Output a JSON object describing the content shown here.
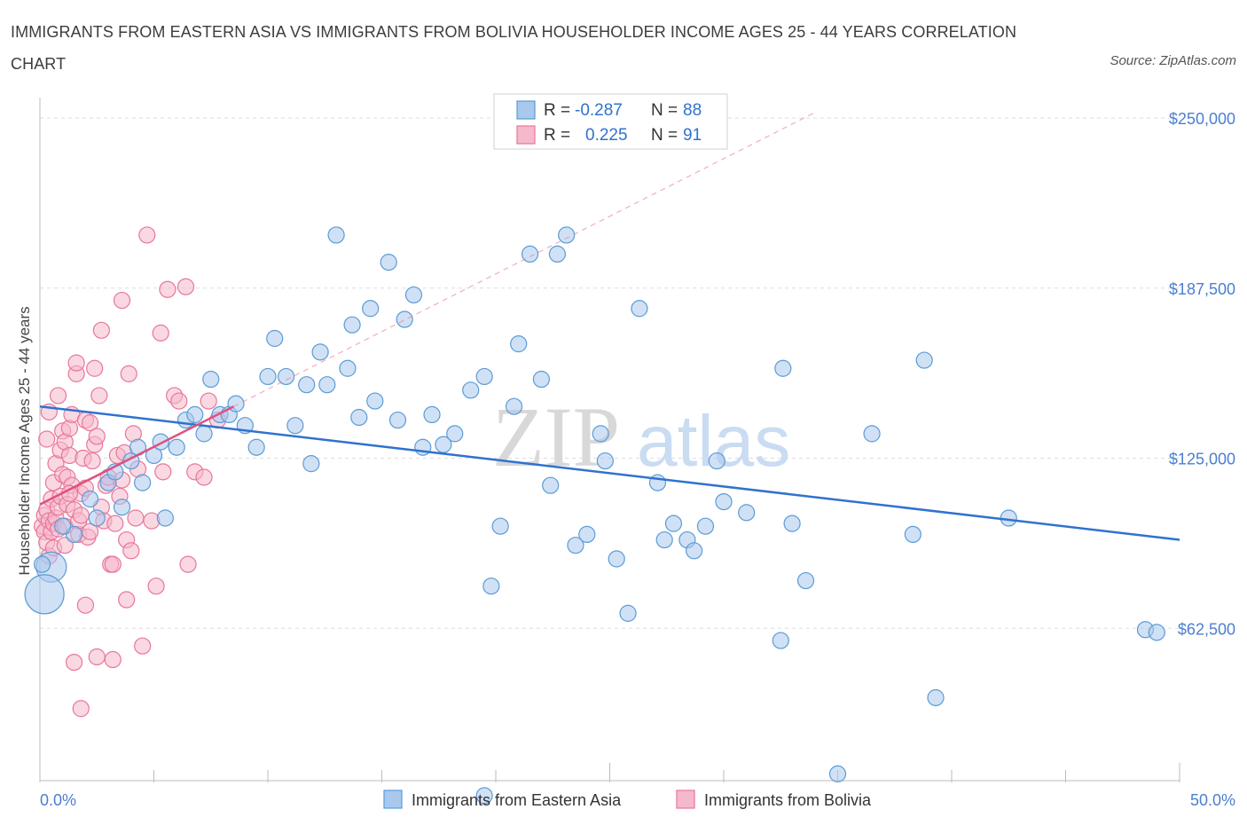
{
  "title": "IMMIGRANTS FROM EASTERN ASIA VS IMMIGRANTS FROM BOLIVIA HOUSEHOLDER INCOME AGES 25 - 44 YEARS CORRELATION CHART",
  "source": "Source: ZipAtlas.com",
  "watermark": {
    "zip": "ZIP",
    "atlas": "atlas"
  },
  "colors": {
    "blue": "#5b9bd5",
    "blue_fill": "#a9c8ee",
    "blue_line": "#2f72cf",
    "pink": "#e8769a",
    "pink_fill": "#f6b8cb",
    "pink_line": "#e0507f",
    "tick_label": "#4a7fd0",
    "grid": "#dddddd"
  },
  "legend": {
    "rows": [
      {
        "r_label": "R =",
        "r_value": "-0.287",
        "n_label": "N =",
        "n_value": "88"
      },
      {
        "r_label": "R =",
        "r_value": "0.225",
        "n_label": "N =",
        "n_value": "91"
      }
    ]
  },
  "chart_data": {
    "type": "scatter",
    "title": "IMMIGRANTS FROM EASTERN ASIA VS IMMIGRANTS FROM BOLIVIA HOUSEHOLDER INCOME AGES 25 - 44 YEARS CORRELATION CHART",
    "ylabel": "Householder Income Ages 25 - 44 years",
    "xlim": [
      0,
      50
    ],
    "ylim": [
      0,
      260000
    ],
    "x_tick_labels": [
      "0.0%",
      "50.0%"
    ],
    "y_ticks": [
      62500,
      125000,
      187500,
      250000
    ],
    "y_tick_labels": [
      "$62,500",
      "$125,000",
      "$187,500",
      "$250,000"
    ],
    "grid": true,
    "legend_position": "top-center",
    "series": [
      {
        "name": "Immigrants from Eastern Asia",
        "color": "#5b9bd5",
        "r": -0.287,
        "n": 88,
        "trend": {
          "x": [
            0,
            50
          ],
          "y": [
            144000,
            95000
          ]
        },
        "points": [
          [
            0.5,
            85000
          ],
          [
            0.2,
            75000
          ],
          [
            1.5,
            97000
          ],
          [
            2.2,
            110000
          ],
          [
            2.5,
            103000
          ],
          [
            3.0,
            116000
          ],
          [
            3.3,
            120000
          ],
          [
            3.6,
            107000
          ],
          [
            4.0,
            124000
          ],
          [
            4.3,
            129000
          ],
          [
            4.5,
            116000
          ],
          [
            5.0,
            126000
          ],
          [
            5.3,
            131000
          ],
          [
            5.5,
            103000
          ],
          [
            6.0,
            129000
          ],
          [
            6.4,
            139000
          ],
          [
            6.8,
            141000
          ],
          [
            7.2,
            134000
          ],
          [
            7.5,
            154000
          ],
          [
            7.9,
            141000
          ],
          [
            8.3,
            141000
          ],
          [
            8.6,
            145000
          ],
          [
            9.0,
            137000
          ],
          [
            9.5,
            129000
          ],
          [
            10.0,
            155000
          ],
          [
            10.3,
            169000
          ],
          [
            10.8,
            155000
          ],
          [
            11.2,
            137000
          ],
          [
            11.7,
            152000
          ],
          [
            11.9,
            123000
          ],
          [
            12.3,
            164000
          ],
          [
            12.6,
            152000
          ],
          [
            13.0,
            207000
          ],
          [
            13.5,
            158000
          ],
          [
            13.7,
            174000
          ],
          [
            14.0,
            140000
          ],
          [
            14.5,
            180000
          ],
          [
            14.7,
            146000
          ],
          [
            15.3,
            197000
          ],
          [
            15.7,
            139000
          ],
          [
            16.0,
            176000
          ],
          [
            16.4,
            185000
          ],
          [
            16.8,
            129000
          ],
          [
            17.2,
            141000
          ],
          [
            17.7,
            130000
          ],
          [
            18.2,
            134000
          ],
          [
            18.9,
            150000
          ],
          [
            19.5,
            155000
          ],
          [
            19.5,
            1000
          ],
          [
            19.8,
            78000
          ],
          [
            20.2,
            100000
          ],
          [
            20.8,
            144000
          ],
          [
            21.0,
            167000
          ],
          [
            21.5,
            200000
          ],
          [
            22.0,
            154000
          ],
          [
            22.4,
            115000
          ],
          [
            22.7,
            200000
          ],
          [
            23.1,
            207000
          ],
          [
            23.5,
            93000
          ],
          [
            24.0,
            97000
          ],
          [
            24.6,
            134000
          ],
          [
            24.8,
            124000
          ],
          [
            25.3,
            88000
          ],
          [
            25.8,
            68000
          ],
          [
            26.3,
            180000
          ],
          [
            27.1,
            116000
          ],
          [
            27.4,
            95000
          ],
          [
            27.8,
            101000
          ],
          [
            28.4,
            95000
          ],
          [
            28.7,
            91000
          ],
          [
            29.2,
            100000
          ],
          [
            29.7,
            124000
          ],
          [
            30.0,
            109000
          ],
          [
            31.0,
            105000
          ],
          [
            32.5,
            58000
          ],
          [
            32.6,
            158000
          ],
          [
            33.0,
            101000
          ],
          [
            33.6,
            80000
          ],
          [
            35.0,
            9000
          ],
          [
            36.5,
            134000
          ],
          [
            38.3,
            97000
          ],
          [
            38.8,
            161000
          ],
          [
            39.3,
            37000
          ],
          [
            42.5,
            103000
          ],
          [
            48.5,
            62000
          ],
          [
            49.0,
            61000
          ],
          [
            0.1,
            86000
          ],
          [
            1.0,
            100000
          ]
        ],
        "sizes": {
          "large": [
            [
              0.5,
              85000
            ],
            [
              0.2,
              75000
            ]
          ]
        }
      },
      {
        "name": "Immigrants from Bolivia",
        "color": "#e8769a",
        "r": 0.225,
        "n": 91,
        "trend": {
          "x": [
            0,
            8.5
          ],
          "y": [
            108000,
            144000
          ],
          "extended": {
            "x": [
              8.5,
              34
            ],
            "y": [
              144000,
              252000
            ]
          }
        },
        "points": [
          [
            0.1,
            100000
          ],
          [
            0.2,
            98000
          ],
          [
            0.2,
            104000
          ],
          [
            0.3,
            94000
          ],
          [
            0.3,
            106000
          ],
          [
            0.4,
            102000
          ],
          [
            0.4,
            89000
          ],
          [
            0.5,
            110000
          ],
          [
            0.5,
            98000
          ],
          [
            0.6,
            101000
          ],
          [
            0.6,
            116000
          ],
          [
            0.7,
            103000
          ],
          [
            0.7,
            123000
          ],
          [
            0.8,
            107000
          ],
          [
            0.8,
            99000
          ],
          [
            0.9,
            111000
          ],
          [
            0.9,
            128000
          ],
          [
            1.0,
            119000
          ],
          [
            1.0,
            135000
          ],
          [
            1.1,
            131000
          ],
          [
            1.1,
            100000
          ],
          [
            1.2,
            108000
          ],
          [
            1.2,
            118000
          ],
          [
            1.3,
            126000
          ],
          [
            1.3,
            136000
          ],
          [
            1.4,
            115000
          ],
          [
            1.4,
            141000
          ],
          [
            1.5,
            106000
          ],
          [
            1.6,
            156000
          ],
          [
            1.6,
            160000
          ],
          [
            1.7,
            97000
          ],
          [
            1.7,
            102000
          ],
          [
            1.8,
            104000
          ],
          [
            1.8,
            112000
          ],
          [
            1.9,
            125000
          ],
          [
            2.0,
            114000
          ],
          [
            2.0,
            71000
          ],
          [
            2.0,
            139000
          ],
          [
            2.1,
            96000
          ],
          [
            2.2,
            138000
          ],
          [
            2.2,
            98000
          ],
          [
            2.3,
            124000
          ],
          [
            2.4,
            130000
          ],
          [
            2.4,
            158000
          ],
          [
            2.5,
            133000
          ],
          [
            2.6,
            148000
          ],
          [
            2.7,
            172000
          ],
          [
            2.7,
            107000
          ],
          [
            2.8,
            102000
          ],
          [
            2.9,
            115000
          ],
          [
            3.0,
            118000
          ],
          [
            3.1,
            86000
          ],
          [
            3.2,
            86000
          ],
          [
            3.2,
            51000
          ],
          [
            3.3,
            101000
          ],
          [
            3.4,
            126000
          ],
          [
            3.5,
            111000
          ],
          [
            3.6,
            117000
          ],
          [
            3.6,
            183000
          ],
          [
            3.7,
            127000
          ],
          [
            3.8,
            73000
          ],
          [
            3.8,
            95000
          ],
          [
            3.9,
            156000
          ],
          [
            4.0,
            91000
          ],
          [
            4.1,
            134000
          ],
          [
            4.2,
            103000
          ],
          [
            4.3,
            121000
          ],
          [
            4.5,
            56000
          ],
          [
            4.7,
            207000
          ],
          [
            4.9,
            102000
          ],
          [
            5.1,
            78000
          ],
          [
            5.3,
            171000
          ],
          [
            5.4,
            120000
          ],
          [
            5.6,
            187000
          ],
          [
            5.9,
            148000
          ],
          [
            6.1,
            146000
          ],
          [
            6.4,
            188000
          ],
          [
            6.5,
            86000
          ],
          [
            6.8,
            120000
          ],
          [
            7.2,
            118000
          ],
          [
            7.4,
            146000
          ],
          [
            7.8,
            139000
          ],
          [
            1.5,
            50000
          ],
          [
            1.8,
            33000
          ],
          [
            2.5,
            52000
          ],
          [
            0.3,
            132000
          ],
          [
            0.4,
            142000
          ],
          [
            0.6,
            92000
          ],
          [
            0.8,
            148000
          ],
          [
            1.1,
            93000
          ],
          [
            1.3,
            112000
          ]
        ]
      }
    ]
  },
  "bottom_legend": {
    "items": [
      "Immigrants from Eastern Asia",
      "Immigrants from Bolivia"
    ]
  }
}
